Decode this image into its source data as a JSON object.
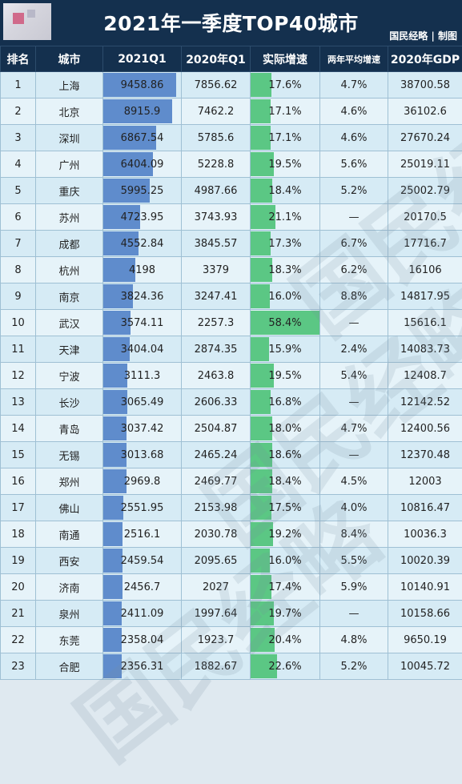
{
  "title": "2021年一季度TOP40城市",
  "credit": "国民经略 | 制图",
  "watermark": "国民经略",
  "columns": [
    "排名",
    "城市",
    "2021Q1",
    "2020年Q1",
    "实际增速",
    "两年平均增速",
    "2020年GDP"
  ],
  "chart_data": {
    "type": "table",
    "title": "2021年一季度TOP40城市",
    "bar_max_gdp": 9458.86,
    "growth_bar_max": 58.4,
    "rows": [
      {
        "rank": "1",
        "city": "上海",
        "q1_2021": "9458.86",
        "q1_2020": "7856.62",
        "growth": "17.6%",
        "two_year_avg": "4.7%",
        "gdp_2020": "38700.58"
      },
      {
        "rank": "2",
        "city": "北京",
        "q1_2021": "8915.9",
        "q1_2020": "7462.2",
        "growth": "17.1%",
        "two_year_avg": "4.6%",
        "gdp_2020": "36102.6"
      },
      {
        "rank": "3",
        "city": "深圳",
        "q1_2021": "6867.54",
        "q1_2020": "5785.6",
        "growth": "17.1%",
        "two_year_avg": "4.6%",
        "gdp_2020": "27670.24"
      },
      {
        "rank": "4",
        "city": "广州",
        "q1_2021": "6404.09",
        "q1_2020": "5228.8",
        "growth": "19.5%",
        "two_year_avg": "5.6%",
        "gdp_2020": "25019.11"
      },
      {
        "rank": "5",
        "city": "重庆",
        "q1_2021": "5995.25",
        "q1_2020": "4987.66",
        "growth": "18.4%",
        "two_year_avg": "5.2%",
        "gdp_2020": "25002.79"
      },
      {
        "rank": "6",
        "city": "苏州",
        "q1_2021": "4723.95",
        "q1_2020": "3743.93",
        "growth": "21.1%",
        "two_year_avg": "—",
        "gdp_2020": "20170.5"
      },
      {
        "rank": "7",
        "city": "成都",
        "q1_2021": "4552.84",
        "q1_2020": "3845.57",
        "growth": "17.3%",
        "two_year_avg": "6.7%",
        "gdp_2020": "17716.7"
      },
      {
        "rank": "8",
        "city": "杭州",
        "q1_2021": "4198",
        "q1_2020": "3379",
        "growth": "18.3%",
        "two_year_avg": "6.2%",
        "gdp_2020": "16106"
      },
      {
        "rank": "9",
        "city": "南京",
        "q1_2021": "3824.36",
        "q1_2020": "3247.41",
        "growth": "16.0%",
        "two_year_avg": "8.8%",
        "gdp_2020": "14817.95"
      },
      {
        "rank": "10",
        "city": "武汉",
        "q1_2021": "3574.11",
        "q1_2020": "2257.3",
        "growth": "58.4%",
        "two_year_avg": "—",
        "gdp_2020": "15616.1"
      },
      {
        "rank": "11",
        "city": "天津",
        "q1_2021": "3404.04",
        "q1_2020": "2874.35",
        "growth": "15.9%",
        "two_year_avg": "2.4%",
        "gdp_2020": "14083.73"
      },
      {
        "rank": "12",
        "city": "宁波",
        "q1_2021": "3111.3",
        "q1_2020": "2463.8",
        "growth": "19.5%",
        "two_year_avg": "5.4%",
        "gdp_2020": "12408.7"
      },
      {
        "rank": "13",
        "city": "长沙",
        "q1_2021": "3065.49",
        "q1_2020": "2606.33",
        "growth": "16.8%",
        "two_year_avg": "—",
        "gdp_2020": "12142.52"
      },
      {
        "rank": "14",
        "city": "青岛",
        "q1_2021": "3037.42",
        "q1_2020": "2504.87",
        "growth": "18.0%",
        "two_year_avg": "4.7%",
        "gdp_2020": "12400.56"
      },
      {
        "rank": "15",
        "city": "无锡",
        "q1_2021": "3013.68",
        "q1_2020": "2465.24",
        "growth": "18.6%",
        "two_year_avg": "—",
        "gdp_2020": "12370.48"
      },
      {
        "rank": "16",
        "city": "郑州",
        "q1_2021": "2969.8",
        "q1_2020": "2469.77",
        "growth": "18.4%",
        "two_year_avg": "4.5%",
        "gdp_2020": "12003"
      },
      {
        "rank": "17",
        "city": "佛山",
        "q1_2021": "2551.95",
        "q1_2020": "2153.98",
        "growth": "17.5%",
        "two_year_avg": "4.0%",
        "gdp_2020": "10816.47"
      },
      {
        "rank": "18",
        "city": "南通",
        "q1_2021": "2516.1",
        "q1_2020": "2030.78",
        "growth": "19.2%",
        "two_year_avg": "8.4%",
        "gdp_2020": "10036.3"
      },
      {
        "rank": "19",
        "city": "西安",
        "q1_2021": "2459.54",
        "q1_2020": "2095.65",
        "growth": "16.0%",
        "two_year_avg": "5.5%",
        "gdp_2020": "10020.39"
      },
      {
        "rank": "20",
        "city": "济南",
        "q1_2021": "2456.7",
        "q1_2020": "2027",
        "growth": "17.4%",
        "two_year_avg": "5.9%",
        "gdp_2020": "10140.91"
      },
      {
        "rank": "21",
        "city": "泉州",
        "q1_2021": "2411.09",
        "q1_2020": "1997.64",
        "growth": "19.7%",
        "two_year_avg": "—",
        "gdp_2020": "10158.66"
      },
      {
        "rank": "22",
        "city": "东莞",
        "q1_2021": "2358.04",
        "q1_2020": "1923.7",
        "growth": "20.4%",
        "two_year_avg": "4.8%",
        "gdp_2020": "9650.19"
      },
      {
        "rank": "23",
        "city": "合肥",
        "q1_2021": "2356.31",
        "q1_2020": "1882.67",
        "growth": "22.6%",
        "two_year_avg": "5.2%",
        "gdp_2020": "10045.72"
      }
    ]
  },
  "colors": {
    "header_bg": "#14304e",
    "bar_blue": "#5f8ccc",
    "bar_green": "#5bc784"
  }
}
